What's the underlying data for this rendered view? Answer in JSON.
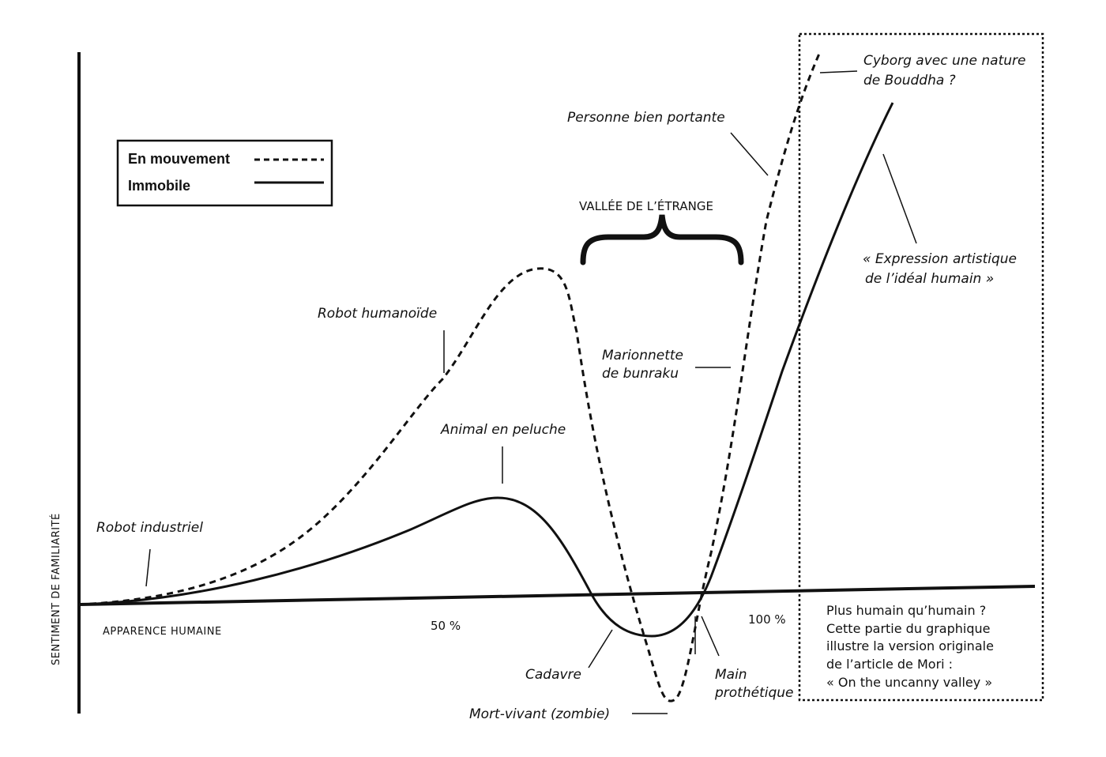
{
  "legend": {
    "moving": "En mouvement",
    "still": "Immobile"
  },
  "axes": {
    "y_label": "SENTIMENT DE FAMILIARITÉ",
    "x_label": "APPARENCE HUMAINE",
    "tick_50": "50 %",
    "tick_100": "100 %"
  },
  "valley_label": "VALLÉE DE L’ÉTRANGE",
  "labels": {
    "robot_industriel": "Robot industriel",
    "robot_humanoide": "Robot humanoïde",
    "animal_peluche": "Animal en peluche",
    "marionnette_1": "Marionnette",
    "marionnette_2": "de bunraku",
    "personne": "Personne bien portante",
    "cyborg_1": "Cyborg avec une nature",
    "cyborg_2": "de Bouddha ?",
    "expression_1": "« Expression artistique",
    "expression_2": "de l’idéal humain »",
    "cadavre": "Cadavre",
    "zombie": "Mort-vivant (zombie)",
    "main_1": "Main",
    "main_2": "prothétique"
  },
  "note": {
    "line1": "Plus humain qu’humain ?",
    "line2": "Cette partie du graphique",
    "line3": "illustre la version originale",
    "line4": "de l’article de Mori :",
    "line5": "« On the uncanny valley »"
  },
  "colors": {
    "ink": "#111111",
    "background": "#ffffff"
  }
}
